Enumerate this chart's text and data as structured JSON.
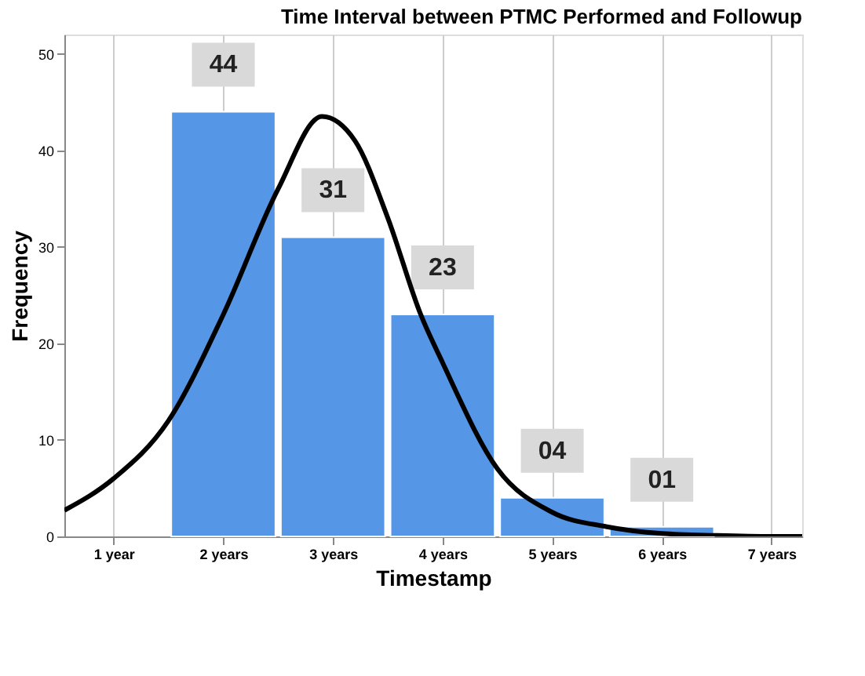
{
  "chart_data": {
    "type": "bar",
    "title": "Time Interval between PTMC Performed and Followup",
    "xlabel": "Timestamp",
    "ylabel": "Frequency",
    "x": [
      2,
      3,
      4,
      5,
      6
    ],
    "series": [
      {
        "color": "#5596e6",
        "values": [
          44,
          31,
          23,
          4,
          1
        ],
        "value_labels": [
          "44",
          "31",
          "23",
          "04",
          "01"
        ]
      },
      {
        "type": "line",
        "color": "#000000",
        "x": [
          0.55,
          1,
          1.5,
          2,
          2.5,
          2.9,
          3.2,
          3.5,
          3.8,
          4,
          4.5,
          5,
          5.5,
          6,
          6.5,
          7,
          7.28
        ],
        "values": [
          2.7,
          6,
          12,
          23,
          36,
          43.5,
          41,
          33,
          23,
          18,
          7,
          2.5,
          1,
          0.3,
          0.1,
          0,
          0
        ]
      }
    ],
    "xlim": [
      0.55,
      7.28
    ],
    "xticks": [
      {
        "value": 1,
        "label": "1 year"
      },
      {
        "value": 2,
        "label": "2 years"
      },
      {
        "value": 3,
        "label": "3 years"
      },
      {
        "value": 4,
        "label": "4 years"
      },
      {
        "value": 5,
        "label": "5 years"
      },
      {
        "value": 6,
        "label": "6 years"
      },
      {
        "value": 7,
        "label": "7 years"
      }
    ],
    "ylim": [
      0,
      52
    ],
    "yticks": [
      0,
      10,
      20,
      30,
      40,
      50
    ],
    "grid": "x",
    "line_style": "solid",
    "marker": "none"
  }
}
